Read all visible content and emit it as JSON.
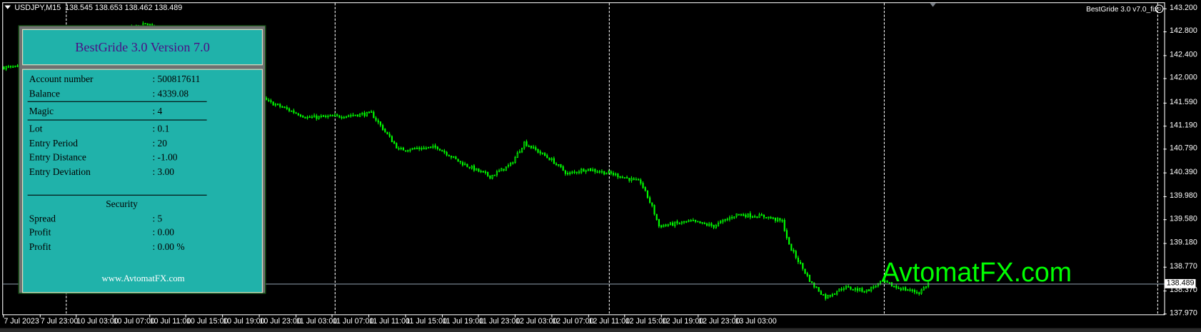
{
  "header": {
    "symbol": "USDJPY,M15",
    "ohlc": "138.545 138.653 138.462 138.489",
    "ea_label": "BestGride  3.0 v7.0_fix",
    "ea_status_icon": "smiley-icon"
  },
  "watermark": "AvtomatFX.com",
  "panel": {
    "title": "BestGride 3.0 Version 7.0",
    "rows": [
      {
        "label": "Account number",
        "value": ": 500817611"
      },
      {
        "label": "Balance",
        "value": ": 4339.08"
      },
      {
        "label": "Magic",
        "value": ": 4"
      },
      {
        "label": "Lot",
        "value": ": 0.1"
      },
      {
        "label": "Entry Period",
        "value": ": 20"
      },
      {
        "label": "Entry Distance",
        "value": ": -1.00"
      },
      {
        "label": "Entry Deviation",
        "value": ": 3.00"
      }
    ],
    "security_heading": "Security",
    "security_rows": [
      {
        "label": "Spread",
        "value": ": 5"
      },
      {
        "label": "Profit",
        "value": ": 0.00"
      },
      {
        "label": "Profit",
        "value": ": 0.00  %"
      }
    ],
    "site": "www.AvtomatFX.com",
    "colors": {
      "background": "#20b2aa",
      "title": "#4b0f86"
    }
  },
  "chart_data": {
    "type": "candlestick",
    "timeframe": "M15",
    "bid": "138.489",
    "price_ticks": [
      "143.200",
      "142.800",
      "142.400",
      "142.000",
      "141.590",
      "141.190",
      "140.790",
      "140.390",
      "139.980",
      "139.580",
      "139.180",
      "138.770",
      "138.370",
      "137.970"
    ],
    "time_ticks": [
      "7 Jul 2023",
      "7 Jul 23:00",
      "10 Jul 03:00",
      "10 Jul 07:00",
      "10 Jul 11:00",
      "10 Jul 15:00",
      "10 Jul 19:00",
      "10 Jul 23:00",
      "11 Jul 03:00",
      "11 Jul 07:00",
      "11 Jul 11:00",
      "11 Jul 15:00",
      "11 Jul 19:00",
      "11 Jul 23:00",
      "12 Jul 03:00",
      "12 Jul 07:00",
      "12 Jul 11:00",
      "12 Jul 15:00",
      "12 Jul 19:00",
      "12 Jul 23:00",
      "13 Jul 03:00"
    ],
    "ylim": [
      137.97,
      143.2
    ],
    "candle_color": "#00ff00",
    "price_path_bar_close": [
      [
        0,
        142.19
      ],
      [
        7,
        142.19
      ],
      [
        62,
        142.95
      ],
      [
        116,
        141.6
      ],
      [
        133,
        141.33
      ],
      [
        146,
        141.35
      ],
      [
        161,
        141.4
      ],
      [
        173,
        140.78
      ],
      [
        190,
        140.82
      ],
      [
        200,
        140.56
      ],
      [
        213,
        140.32
      ],
      [
        222,
        140.52
      ],
      [
        228,
        140.9
      ],
      [
        240,
        140.6
      ],
      [
        247,
        140.36
      ],
      [
        255,
        140.45
      ],
      [
        267,
        140.36
      ],
      [
        279,
        140.22
      ],
      [
        284,
        139.8
      ],
      [
        287,
        139.47
      ],
      [
        301,
        139.55
      ],
      [
        311,
        139.47
      ],
      [
        321,
        139.67
      ],
      [
        334,
        139.63
      ],
      [
        341,
        139.55
      ],
      [
        344,
        139.14
      ],
      [
        354,
        138.48
      ],
      [
        360,
        138.25
      ],
      [
        368,
        138.42
      ],
      [
        378,
        138.36
      ],
      [
        385,
        138.52
      ],
      [
        391,
        138.42
      ],
      [
        401,
        138.33
      ],
      [
        405,
        138.489
      ]
    ]
  }
}
